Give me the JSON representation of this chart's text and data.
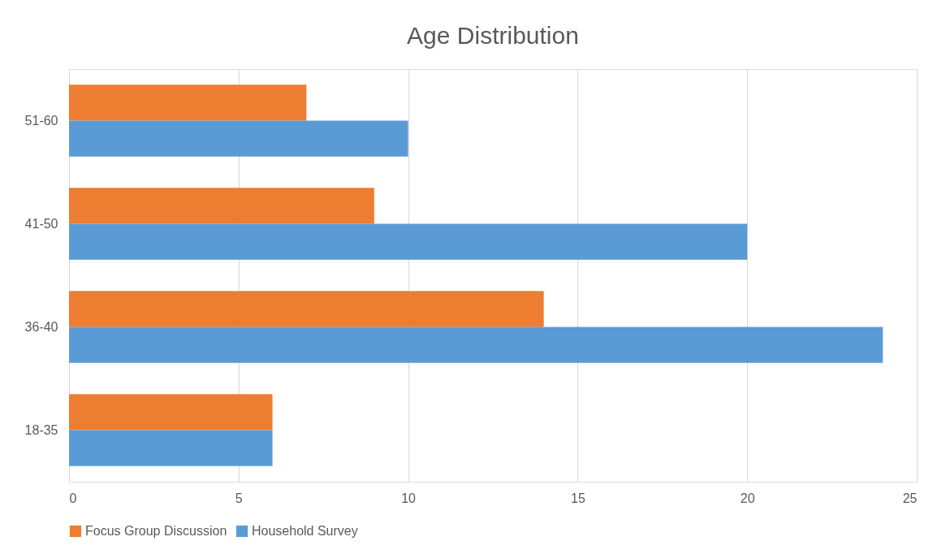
{
  "chart_data": {
    "type": "bar",
    "orientation": "horizontal",
    "title": "Age Distribution",
    "categories": [
      "51-60",
      "41-50",
      "36-40",
      "18-35"
    ],
    "series": [
      {
        "name": "Focus Group Discussion",
        "color": "#ed7d31",
        "values": [
          7,
          9,
          14,
          6
        ]
      },
      {
        "name": "Household Survey",
        "color": "#5b9bd5",
        "values": [
          10,
          20,
          24,
          6
        ]
      }
    ],
    "xlim": [
      0,
      25
    ],
    "xticks": [
      0,
      5,
      10,
      15,
      20,
      25
    ],
    "grid": "x",
    "legend": "bottom"
  }
}
